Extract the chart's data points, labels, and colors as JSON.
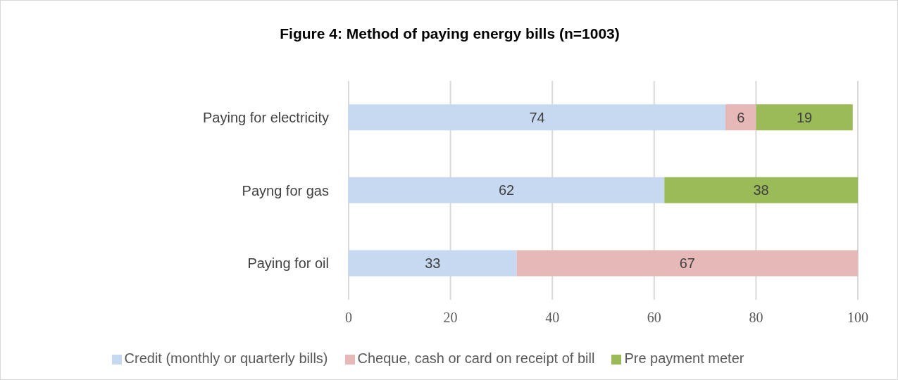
{
  "chart_data": {
    "type": "bar",
    "orientation": "horizontal",
    "stacked": true,
    "title": "Figure 4: Method of paying energy bills (n=1003)",
    "categories": [
      "Paying for electricity",
      "Payng for gas",
      "Paying for oil"
    ],
    "series": [
      {
        "name": "Credit (monthly or quarterly bills)",
        "color": "#c6d9f1",
        "values": [
          74,
          62,
          33
        ]
      },
      {
        "name": "Cheque, cash or card on receipt of bill",
        "color": "#e6b9b8",
        "values": [
          6,
          null,
          67
        ]
      },
      {
        "name": "Pre payment meter",
        "color": "#9bbb59",
        "values": [
          19,
          38,
          null
        ]
      }
    ],
    "xlim": [
      0,
      100
    ],
    "xticks": [
      0,
      20,
      40,
      60,
      80,
      100
    ],
    "grid": "x",
    "legend": "bottom",
    "data_labels": true
  }
}
